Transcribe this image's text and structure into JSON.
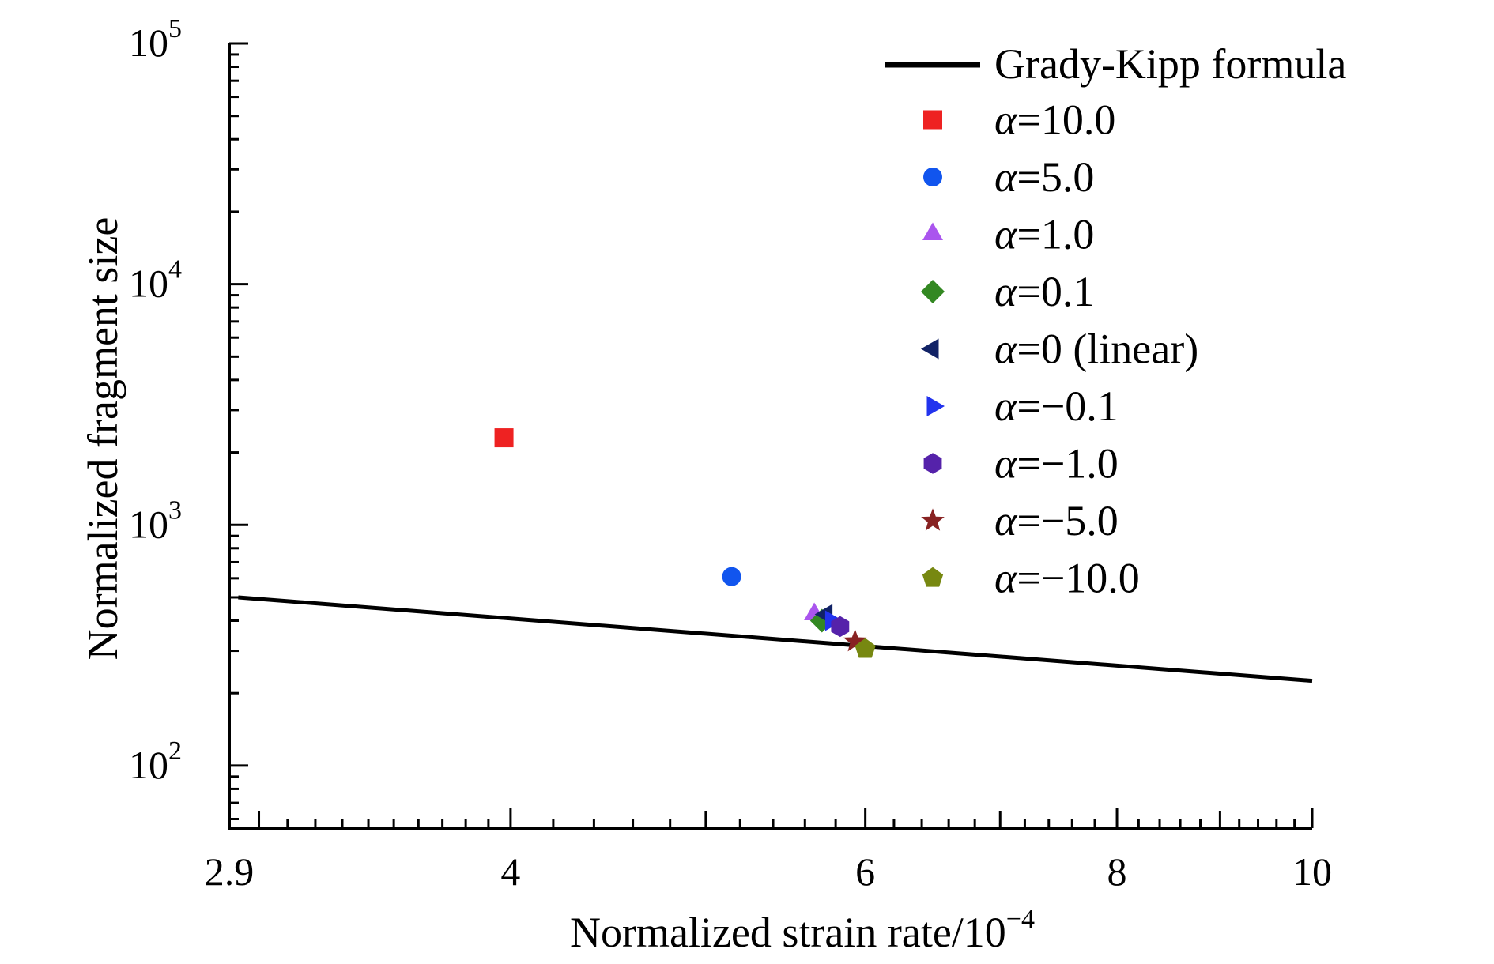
{
  "chart_data": {
    "type": "scatter",
    "xlabel": "Normalized strain rate/10",
    "xlabel_exp": "−4",
    "ylabel": "Normalized fragment size",
    "x_scale": "log",
    "y_scale": "log",
    "xlim": [
      2.9,
      10
    ],
    "ylim": [
      55,
      100000
    ],
    "x_ticks": [
      {
        "value": 2.9,
        "label": "2.9"
      },
      {
        "value": 4,
        "label": "4"
      },
      {
        "value": 6,
        "label": "6"
      },
      {
        "value": 8,
        "label": "8"
      },
      {
        "value": 10,
        "label": "10"
      }
    ],
    "y_ticks": [
      {
        "value": 100,
        "base": "10",
        "exp": "2"
      },
      {
        "value": 1000,
        "base": "10",
        "exp": "3"
      },
      {
        "value": 10000,
        "base": "10",
        "exp": "4"
      },
      {
        "value": 100000,
        "base": "10",
        "exp": "5"
      }
    ],
    "grid": false,
    "legend_position": "top-right",
    "line": {
      "name": "Grady-Kipp formula",
      "color": "#000000",
      "points": [
        [
          2.93,
          500
        ],
        [
          10,
          225
        ]
      ]
    },
    "series": [
      {
        "alpha": "10.0",
        "marker": "square",
        "color": "#ee2222",
        "x": 3.97,
        "y": 2300
      },
      {
        "alpha": "5.0",
        "marker": "circle",
        "color": "#1155ee",
        "x": 5.15,
        "y": 610
      },
      {
        "alpha": "1.0",
        "marker": "triangle-up",
        "color": "#aa55ee",
        "x": 5.66,
        "y": 425
      },
      {
        "alpha": "0.1",
        "marker": "diamond",
        "color": "#338822",
        "x": 5.71,
        "y": 400
      },
      {
        "alpha": "0 (linear)",
        "marker": "triangle-left",
        "color": "#112266",
        "x": 5.74,
        "y": 425
      },
      {
        "alpha": "−0.1",
        "marker": "triangle-right",
        "color": "#2233ee",
        "x": 5.77,
        "y": 400
      },
      {
        "alpha": "−1.0",
        "marker": "hexagon",
        "color": "#5522aa",
        "x": 5.83,
        "y": 378
      },
      {
        "alpha": "−5.0",
        "marker": "star",
        "color": "#882222",
        "x": 5.93,
        "y": 328
      },
      {
        "alpha": "−10.0",
        "marker": "pentagon",
        "color": "#778811",
        "x": 6.0,
        "y": 305
      }
    ],
    "legend_symbol": "α"
  }
}
